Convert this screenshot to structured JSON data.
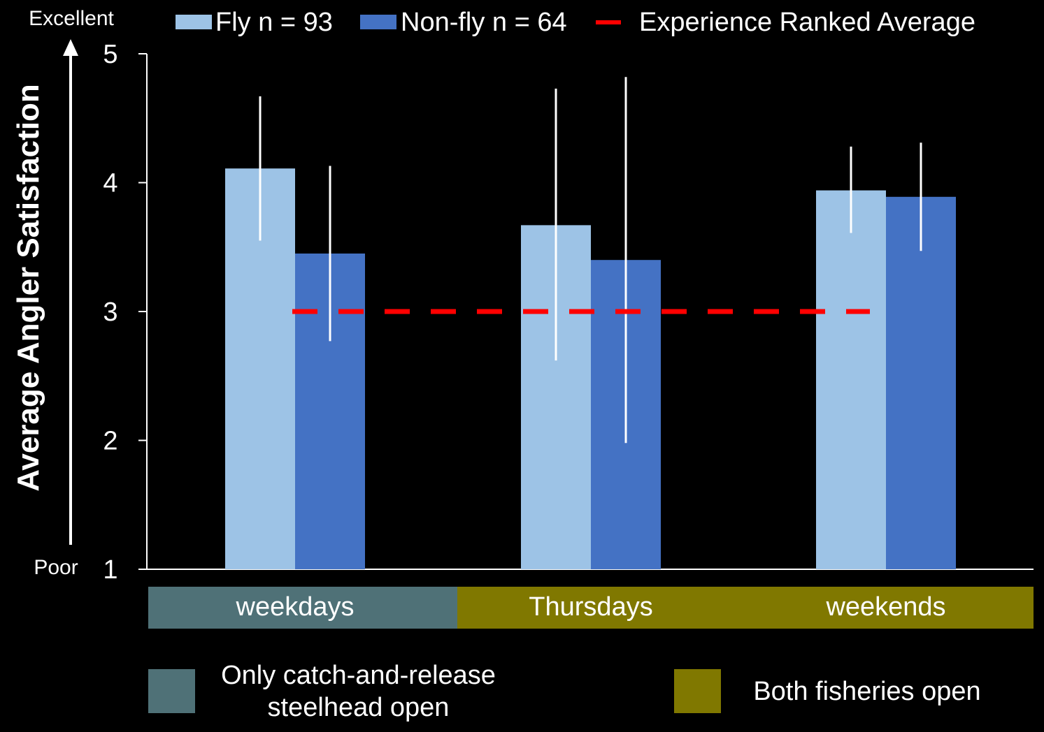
{
  "chart_data": {
    "type": "bar",
    "ylabel": "Average Angler Satisfaction",
    "ylim": [
      1,
      5
    ],
    "yticks": [
      1,
      2,
      3,
      4,
      5
    ],
    "scale_top_label": "Excellent",
    "scale_bottom_label": "Poor",
    "categories": [
      "weekdays",
      "Thursdays",
      "weekends"
    ],
    "series": [
      {
        "name": "Fly n = 93",
        "color": "#9dc3e6",
        "values": [
          4.11,
          3.67,
          3.94
        ],
        "error_low": [
          3.55,
          2.62,
          3.61
        ],
        "error_high": [
          4.67,
          4.73,
          4.28
        ]
      },
      {
        "name": "Non-fly n = 64",
        "color": "#4472c4",
        "values": [
          3.45,
          3.4,
          3.89
        ],
        "error_low": [
          2.77,
          1.98,
          3.47
        ],
        "error_high": [
          4.13,
          4.82,
          4.31
        ]
      }
    ],
    "reference_line": {
      "name": "Experience Ranked Average",
      "value": 3.0,
      "color": "#ff0000",
      "style": "dashed"
    },
    "category_band_colors": [
      "#4f7177",
      "#807800",
      "#807800"
    ],
    "band_legend": [
      {
        "label_line1": "Only catch-and-release",
        "label_line2": "steelhead open",
        "color": "#4f7177"
      },
      {
        "label": "Both fisheries open",
        "color": "#807800"
      }
    ],
    "legend_placement": "top",
    "grid": false
  }
}
